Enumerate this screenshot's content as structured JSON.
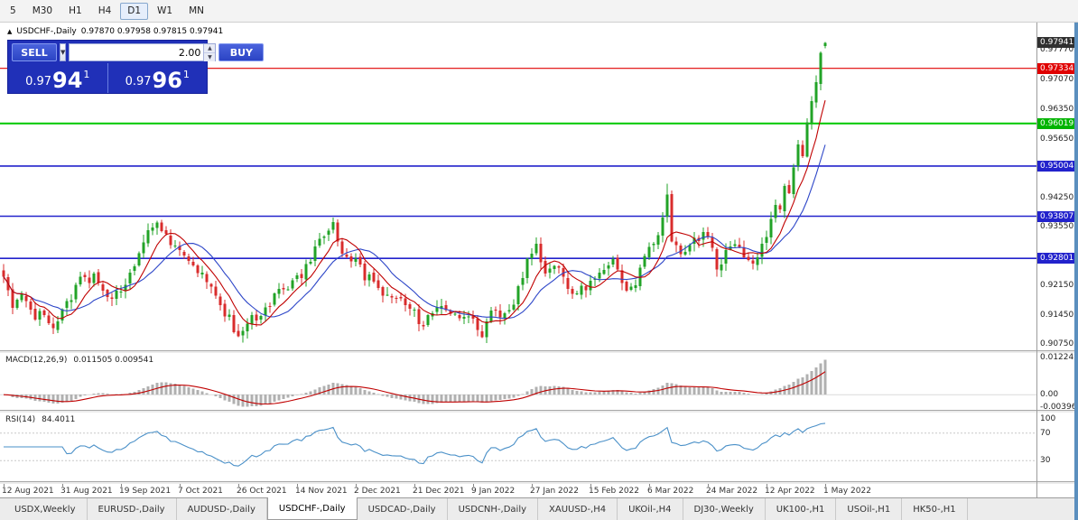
{
  "toolbar": {
    "timeframes": [
      "5",
      "M30",
      "H1",
      "H4",
      "D1",
      "W1",
      "MN"
    ],
    "active": "D1"
  },
  "icons": {
    "dropdown": "▼",
    "spin_up": "▲",
    "spin_down": "▼",
    "marker": "▲"
  },
  "chart": {
    "symbol": "USDCHF-,Daily",
    "ohlc": "0.97870 0.97958 0.97815 0.97941"
  },
  "trade_panel": {
    "sell_label": "SELL",
    "buy_label": "BUY",
    "volume": "2.00",
    "bid": {
      "prefix": "0.97",
      "big": "94",
      "sup": "1"
    },
    "ask": {
      "prefix": "0.97",
      "big": "96",
      "sup": "1"
    }
  },
  "price_axis": {
    "ticks": [
      {
        "v": 0.9777,
        "t": "0.97770"
      },
      {
        "v": 0.9707,
        "t": "0.97070"
      },
      {
        "v": 0.9635,
        "t": "0.96350"
      },
      {
        "v": 0.9565,
        "t": "0.95650"
      },
      {
        "v": 0.9425,
        "t": "0.94250"
      },
      {
        "v": 0.9355,
        "t": "0.93550"
      },
      {
        "v": 0.9215,
        "t": "0.92150"
      },
      {
        "v": 0.9145,
        "t": "0.91450"
      },
      {
        "v": 0.9075,
        "t": "0.90750"
      }
    ],
    "markers": [
      {
        "v": 0.97941,
        "t": "0.97941",
        "bg": "#303030"
      },
      {
        "v": 0.97334,
        "t": "0.97334",
        "bg": "#e00000"
      },
      {
        "v": 0.96019,
        "t": "0.96019",
        "bg": "#00b400"
      },
      {
        "v": 0.95004,
        "t": "0.95004",
        "bg": "#2222cc"
      },
      {
        "v": 0.93807,
        "t": "0.93807",
        "bg": "#2222cc"
      },
      {
        "v": 0.92801,
        "t": "0.92801",
        "bg": "#2222cc"
      }
    ]
  },
  "levels": [
    {
      "price": 0.97334,
      "color": "#e00000",
      "w": 1.2
    },
    {
      "price": 0.96019,
      "color": "#00c800",
      "w": 2
    },
    {
      "price": 0.95004,
      "color": "#2222cc",
      "w": 1.6
    },
    {
      "price": 0.93807,
      "color": "#2222cc",
      "w": 1.6
    },
    {
      "price": 0.92801,
      "color": "#2222cc",
      "w": 1.6
    }
  ],
  "macd": {
    "name": "MACD(12,26,9)",
    "values": "0.011505 0.009541",
    "range": [
      -0.005,
      0.0138
    ],
    "axis": [
      {
        "v": 0.012242,
        "t": "0.012242"
      },
      {
        "v": 0,
        "t": "0.00"
      },
      {
        "v": -0.003961,
        "t": "-0.003961"
      }
    ]
  },
  "rsi": {
    "name": "RSI(14)",
    "value": "84.4011",
    "range": [
      0,
      100
    ],
    "levels": [
      70,
      30
    ],
    "axis": [
      {
        "v": 100,
        "t": "100"
      },
      {
        "v": 70,
        "t": "70"
      },
      {
        "v": 30,
        "t": "30"
      }
    ]
  },
  "tabs": {
    "active_index": 3,
    "items": [
      "USDX,Weekly",
      "EURUSD-,Daily",
      "AUDUSD-,Daily",
      "USDCHF-,Daily",
      "USDCAD-,Daily",
      "USDCNH-,Daily",
      "XAUUSD-,H4",
      "UKOil-,H4",
      "DJ30-,Weekly",
      "UK100-,H1",
      "USOil-,H1",
      "HK50-,H1"
    ]
  },
  "chart_data": {
    "type": "candlestick",
    "symbol": "USDCHF-",
    "timeframe": "Daily",
    "ohlc_current": {
      "open": 0.9787,
      "high": 0.97958,
      "low": 0.97815,
      "close": 0.97941
    },
    "bid": 0.97941,
    "ask": 0.97961,
    "num_candles": 183,
    "seed": 77,
    "price_range": [
      0.9061,
      0.98425
    ],
    "levels": [
      0.97334,
      0.96019,
      0.95004,
      0.93807,
      0.92801
    ],
    "indicators": [
      "MACD(12,26,9) = 0.011505 / 0.009541",
      "RSI(14) = 84.4011"
    ],
    "date_labels": [
      "12 Aug 2021",
      "31 Aug 2021",
      "19 Sep 2021",
      "7 Oct 2021",
      "26 Oct 2021",
      "14 Nov 2021",
      "2 Dec 2021",
      "21 Dec 2021",
      "9 Jan 2022",
      "27 Jan 2022",
      "15 Feb 2022",
      "6 Mar 2022",
      "24 Mar 2022",
      "12 Apr 2022",
      "1 May 2022"
    ],
    "anchors": [
      [
        0,
        0.9235
      ],
      [
        2,
        0.916
      ],
      [
        4,
        0.9185
      ],
      [
        7,
        0.913
      ],
      [
        9,
        0.9155
      ],
      [
        11,
        0.912
      ],
      [
        14,
        0.917
      ],
      [
        17,
        0.9225
      ],
      [
        20,
        0.9235
      ],
      [
        23,
        0.918
      ],
      [
        26,
        0.921
      ],
      [
        29,
        0.9265
      ],
      [
        32,
        0.9345
      ],
      [
        34,
        0.936
      ],
      [
        36,
        0.933
      ],
      [
        38,
        0.931
      ],
      [
        40,
        0.9285
      ],
      [
        43,
        0.925
      ],
      [
        46,
        0.922
      ],
      [
        49,
        0.915
      ],
      [
        52,
        0.91
      ],
      [
        54,
        0.9125
      ],
      [
        57,
        0.9155
      ],
      [
        60,
        0.9185
      ],
      [
        63,
        0.9215
      ],
      [
        66,
        0.9245
      ],
      [
        69,
        0.93
      ],
      [
        71,
        0.934
      ],
      [
        73,
        0.9365
      ],
      [
        75,
        0.9295
      ],
      [
        78,
        0.928
      ],
      [
        80,
        0.924
      ],
      [
        83,
        0.921
      ],
      [
        87,
        0.9185
      ],
      [
        90,
        0.916
      ],
      [
        93,
        0.9115
      ],
      [
        95,
        0.915
      ],
      [
        98,
        0.916
      ],
      [
        100,
        0.914
      ],
      [
        103,
        0.9155
      ],
      [
        106,
        0.91
      ],
      [
        108,
        0.916
      ],
      [
        111,
        0.9145
      ],
      [
        113,
        0.918
      ],
      [
        115,
        0.924
      ],
      [
        117,
        0.93
      ],
      [
        118,
        0.9315
      ],
      [
        120,
        0.924
      ],
      [
        122,
        0.927
      ],
      [
        124,
        0.9245
      ],
      [
        126,
        0.9195
      ],
      [
        129,
        0.9215
      ],
      [
        131,
        0.924
      ],
      [
        133,
        0.9255
      ],
      [
        135,
        0.927
      ],
      [
        137,
        0.9225
      ],
      [
        139,
        0.9205
      ],
      [
        141,
        0.925
      ],
      [
        143,
        0.93
      ],
      [
        145,
        0.933
      ],
      [
        147,
        0.942
      ],
      [
        148,
        0.933
      ],
      [
        150,
        0.929
      ],
      [
        153,
        0.932
      ],
      [
        156,
        0.934
      ],
      [
        158,
        0.926
      ],
      [
        161,
        0.931
      ],
      [
        164,
        0.929
      ],
      [
        166,
        0.9275
      ],
      [
        168,
        0.931
      ],
      [
        169,
        0.933
      ],
      [
        170,
        0.937
      ],
      [
        171,
        0.941
      ],
      [
        172,
        0.94
      ],
      [
        173,
        0.945
      ],
      [
        174,
        0.944
      ],
      [
        175,
        0.95
      ],
      [
        176,
        0.9555
      ],
      [
        177,
        0.953
      ],
      [
        178,
        0.96
      ],
      [
        179,
        0.9655
      ],
      [
        180,
        0.97
      ],
      [
        181,
        0.977
      ],
      [
        182,
        0.97941
      ]
    ],
    "spikes": [
      [
        73,
        0.9378
      ],
      [
        147,
        0.9458
      ]
    ],
    "colors": {
      "up": "#22a327",
      "down": "#d92c2c",
      "ma_fast": "#c00000",
      "ma_slow": "#2d46c8",
      "macd_hist": "#b0b0b0",
      "macd_signal": "#c00000",
      "rsi": "#4a90c8"
    }
  }
}
